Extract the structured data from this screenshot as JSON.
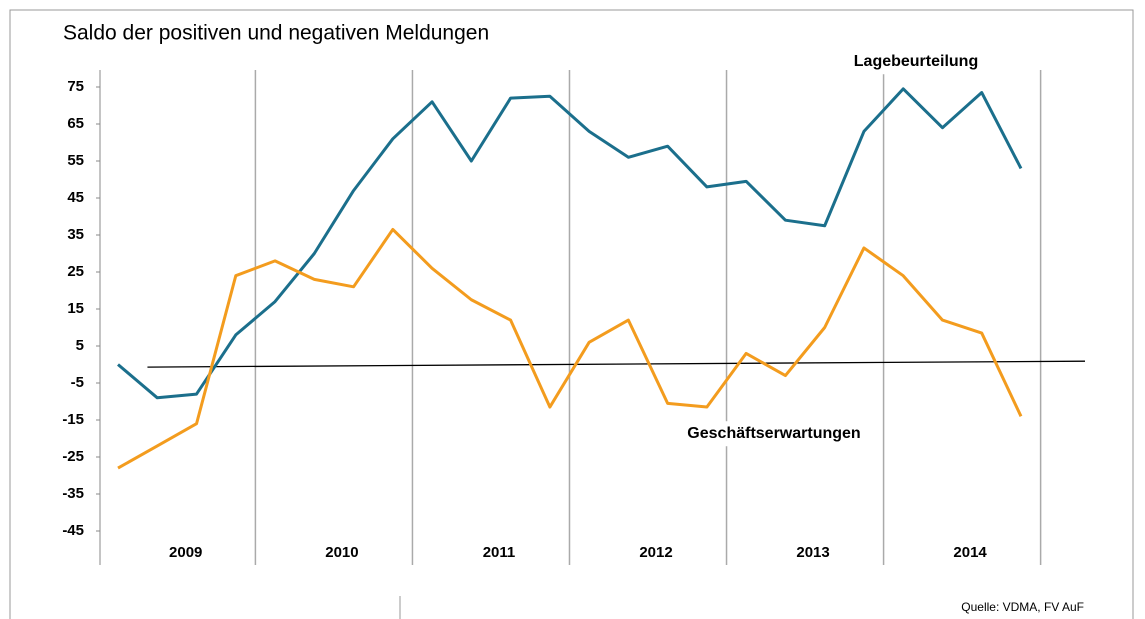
{
  "chart_data": {
    "type": "line",
    "title": "Saldo der positiven und negativen Meldungen",
    "source": "Quelle: VDMA, FV AuF",
    "categories": [
      null,
      null,
      null,
      null,
      null,
      null,
      null,
      null,
      null,
      null,
      null,
      null,
      null,
      null,
      null,
      null,
      null,
      null,
      null,
      null,
      null,
      null,
      null,
      null
    ],
    "groups": [
      "2009",
      "2010",
      "2011",
      "2012",
      "2013",
      "2014"
    ],
    "series": [
      {
        "name": "Lagebeurteilung",
        "color": "#1b6f8c",
        "values": [
          0,
          -9,
          -8,
          8,
          17,
          30,
          47,
          61,
          71,
          55,
          72,
          72.5,
          63,
          56,
          59,
          48,
          49.5,
          39,
          37.5,
          63,
          74.5,
          64,
          73.5,
          53
        ]
      },
      {
        "name": "Geschäftserwartungen",
        "color": "#f39c1e",
        "values": [
          -28,
          -22,
          -16,
          24,
          28,
          23,
          21,
          36.5,
          26,
          17.5,
          12,
          -11.5,
          6,
          12,
          -10.5,
          -11.5,
          3,
          -3,
          10,
          31.5,
          24,
          12,
          8.5,
          -14
        ]
      }
    ],
    "baseline": {
      "color": "#000000",
      "values": [
        -0.7,
        0.9
      ]
    },
    "ylim": [
      -45,
      75
    ],
    "yticks": [
      -45,
      -35,
      -25,
      -15,
      -5,
      5,
      15,
      25,
      35,
      45,
      55,
      65,
      75
    ],
    "grid": true
  }
}
